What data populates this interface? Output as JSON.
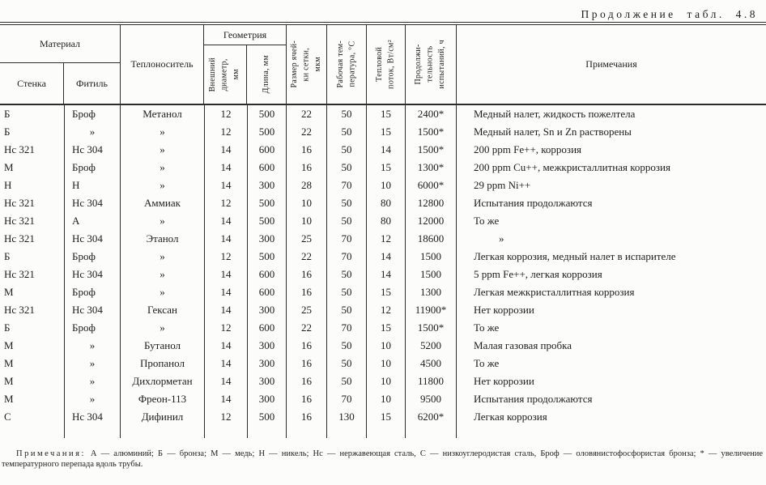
{
  "page_title": "Продолжение табл. 4.8",
  "table": {
    "header": {
      "material": "Материал",
      "wall": "Стенка",
      "wick": "Фитиль",
      "coolant": "Теплоноситель",
      "geometry": "Геометрия",
      "outer_diameter": "Внешний\nдиаметр,\nмм",
      "length": "Длина, мм",
      "mesh_size": "Размер ячей-\nки сетки,\nмкм",
      "work_temp": "Рабочая тем-\nпература, °С",
      "heat_flux": "Тепловой\nпоток, Вт/см²",
      "duration": "Продолжи-\nтельность\nиспытаний, ч",
      "notes": "Примечания"
    },
    "rows": [
      [
        "Б",
        "Броф",
        "Метанол",
        "12",
        "500",
        "22",
        "50",
        "15",
        "2400*",
        "Медный налет, жидкость пожелтела"
      ],
      [
        "Б",
        "»",
        "»",
        "12",
        "500",
        "22",
        "50",
        "15",
        "1500*",
        "Медный налет, Sn и Zn растворены"
      ],
      [
        "Нс 321",
        "Нс 304",
        "»",
        "14",
        "600",
        "16",
        "50",
        "14",
        "1500*",
        "200 ppm Fe++, коррозия"
      ],
      [
        "М",
        "Броф",
        "»",
        "14",
        "600",
        "16",
        "50",
        "15",
        "1300*",
        "200 ppm Cu++, межкристаллитная коррозия"
      ],
      [
        "Н",
        "Н",
        "»",
        "14",
        "300",
        "28",
        "70",
        "10",
        "6000*",
        "29 ppm Ni++"
      ],
      [
        "Нс 321",
        "Нс 304",
        "Аммиак",
        "12",
        "500",
        "10",
        "50",
        "80",
        "12800",
        "Испытания продолжаются"
      ],
      [
        "Нс 321",
        "А",
        "»",
        "14",
        "500",
        "10",
        "50",
        "80",
        "12000",
        "То же"
      ],
      [
        "Нс 321",
        "Нс 304",
        "Этанол",
        "14",
        "300",
        "25",
        "70",
        "12",
        "18600",
        "»"
      ],
      [
        "Б",
        "Броф",
        "»",
        "12",
        "500",
        "22",
        "70",
        "14",
        "1500",
        "Легкая коррозия, медный налет в испарителе"
      ],
      [
        "Нс 321",
        "Нс 304",
        "»",
        "14",
        "600",
        "16",
        "50",
        "14",
        "1500",
        "5 ppm Fe++, легкая коррозия"
      ],
      [
        "М",
        "Броф",
        "»",
        "14",
        "600",
        "16",
        "50",
        "15",
        "1300",
        "Легкая межкристаллитная коррозия"
      ],
      [
        "Нс 321",
        "Нс 304",
        "Гексан",
        "14",
        "300",
        "25",
        "50",
        "12",
        "11900*",
        "Нет коррозии"
      ],
      [
        "Б",
        "Броф",
        "»",
        "12",
        "600",
        "22",
        "70",
        "15",
        "1500*",
        "То же"
      ],
      [
        "М",
        "»",
        "Бутанол",
        "14",
        "300",
        "16",
        "50",
        "10",
        "5200",
        "Малая газовая пробка"
      ],
      [
        "М",
        "»",
        "Пропанол",
        "14",
        "300",
        "16",
        "50",
        "10",
        "4500",
        "То же"
      ],
      [
        "М",
        "»",
        "Дихлорметан",
        "14",
        "300",
        "16",
        "50",
        "10",
        "11800",
        "Нет коррозии"
      ],
      [
        "М",
        "»",
        "Фреон-113",
        "14",
        "300",
        "16",
        "70",
        "10",
        "9500",
        "Испытания продолжаются"
      ],
      [
        "С",
        "Нс 304",
        "Дифинил",
        "12",
        "500",
        "16",
        "130",
        "15",
        "6200*",
        "Легкая коррозия"
      ]
    ]
  },
  "footnote": {
    "label": "Примечания:",
    "text": "А — алюминий; Б — бронза; М — медь; Н — никель; Нс — нержавеющая сталь, С — низкоуглеродистая сталь, Броф — оловянистофосфористая бронза; * — увеличение температурного перепада вдоль трубы."
  }
}
